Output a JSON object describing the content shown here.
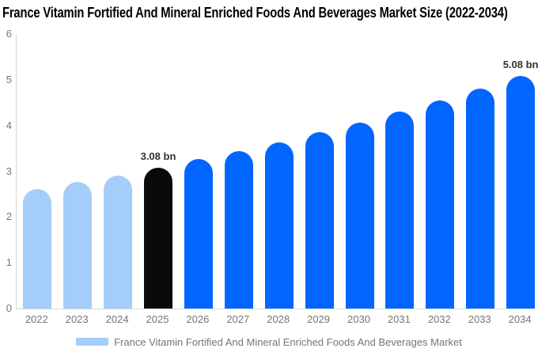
{
  "chart_data": {
    "type": "bar",
    "title": "France Vitamin Fortified And Mineral Enriched Foods And Beverages Market Size (2022-2034)",
    "categories": [
      "2022",
      "2023",
      "2024",
      "2025",
      "2026",
      "2027",
      "2028",
      "2029",
      "2030",
      "2031",
      "2032",
      "2033",
      "2034"
    ],
    "values": [
      2.61,
      2.76,
      2.91,
      3.08,
      3.26,
      3.44,
      3.64,
      3.85,
      4.07,
      4.3,
      4.55,
      4.81,
      5.08
    ],
    "unit": "bn",
    "xlabel": "",
    "ylabel": "",
    "ylim": [
      0,
      6
    ],
    "y_ticks": [
      0,
      1,
      2,
      3,
      4,
      5,
      6
    ],
    "grid": false,
    "legend_position": "bottom",
    "bar_colors": [
      "#A4CDFA",
      "#A4CDFA",
      "#A4CDFA",
      "#0A0A0A",
      "#0066FF",
      "#0066FF",
      "#0066FF",
      "#0066FF",
      "#0066FF",
      "#0066FF",
      "#0066FF",
      "#0066FF",
      "#0066FF"
    ],
    "annotations": [
      {
        "category": "2025",
        "text": "3.08 bn"
      },
      {
        "category": "2034",
        "text": "5.08 bn"
      }
    ],
    "legend": [
      {
        "label": "France Vitamin Fortified And Mineral Enriched Foods And Beverages Market",
        "color": "#A4CDFA"
      }
    ],
    "axis_color": "#D9D9D9",
    "tick_label_color": "#757575"
  }
}
